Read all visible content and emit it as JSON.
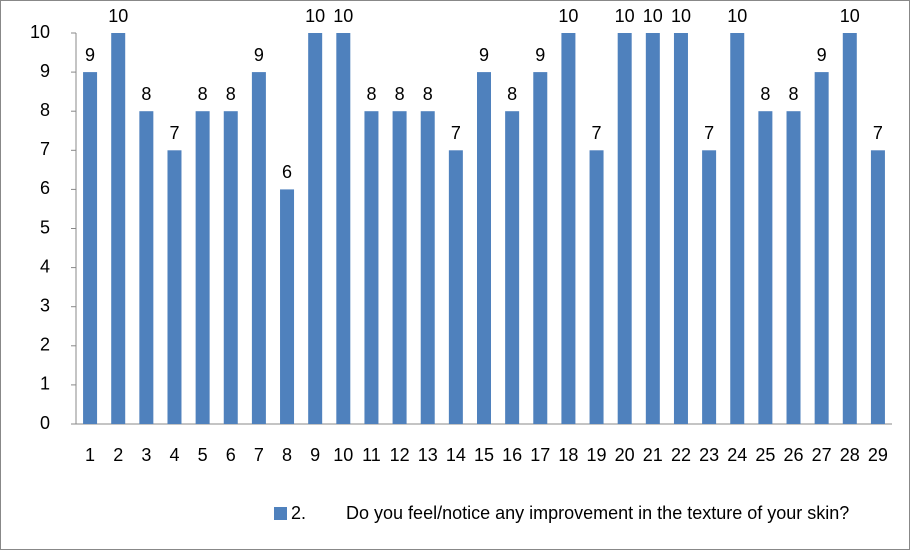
{
  "chart_data": {
    "type": "bar",
    "categories": [
      "1",
      "2",
      "3",
      "4",
      "5",
      "6",
      "7",
      "8",
      "9",
      "10",
      "11",
      "12",
      "13",
      "14",
      "15",
      "16",
      "17",
      "18",
      "19",
      "20",
      "21",
      "22",
      "23",
      "24",
      "25",
      "26",
      "27",
      "28",
      "29"
    ],
    "series": [
      {
        "name": "2.        Do you feel/notice any improvement in the texture of your skin?",
        "color": "#4f81bd",
        "values": [
          9,
          10,
          8,
          7,
          8,
          8,
          9,
          6,
          10,
          10,
          8,
          8,
          8,
          7,
          9,
          8,
          9,
          10,
          7,
          10,
          10,
          10,
          7,
          10,
          8,
          8,
          9,
          10,
          7
        ]
      }
    ],
    "ylim": [
      0,
      10
    ],
    "yticks": [
      0,
      1,
      2,
      3,
      4,
      5,
      6,
      7,
      8,
      9,
      10
    ],
    "grid": false,
    "legend": "bottom"
  }
}
